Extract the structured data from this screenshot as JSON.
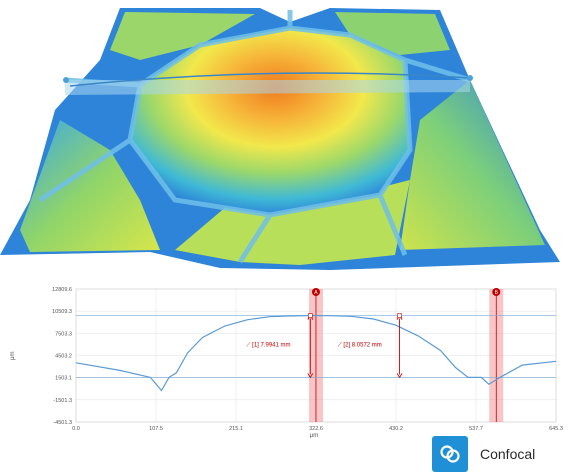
{
  "chart_data": {
    "type": "line",
    "series": [
      {
        "x": [
          0,
          60,
          100,
          115,
          125,
          135,
          150,
          170,
          200,
          230,
          260,
          285,
          310,
          322.6,
          340,
          370,
          400,
          430,
          460,
          490,
          510,
          527,
          537,
          545,
          555,
          570,
          600,
          645.3
        ],
        "y": [
          3200,
          2200,
          1300,
          -400,
          1300,
          1900,
          4500,
          6500,
          8000,
          8800,
          9200,
          9300,
          9350,
          9350,
          9330,
          9250,
          8900,
          8100,
          6700,
          4800,
          2600,
          1300,
          1300,
          1300,
          400,
          1300,
          2900,
          3400
        ]
      }
    ],
    "xlabel": "μm",
    "ylabel": "μm",
    "xticks": [
      "0.0",
      "107.5",
      "215.1",
      "322.6",
      "430.2",
      "537.7",
      "645.3"
    ],
    "yticks": [
      "12809.6",
      "10509.3",
      "7503.3",
      "4503.2",
      "1503.1",
      "-1501.3",
      "-4501.3"
    ],
    "xlim": [
      0,
      645.3
    ],
    "ylim": [
      -4501.3,
      12809.6
    ],
    "grid": true,
    "cursor_markers": [
      {
        "label": "A",
        "x": 322.6
      },
      {
        "label": "B",
        "x": 565
      }
    ],
    "measurements": [
      {
        "id": "[1]",
        "value": "7.9941 mm",
        "x": 315,
        "y_low": 1300,
        "y_high": 9350
      },
      {
        "id": "[2]",
        "value": "8.0572 mm",
        "x": 435,
        "y_low": 1300,
        "y_high": 9350
      }
    ],
    "reference_levels": [
      9350,
      1300
    ]
  },
  "colors": {
    "profile_line": "#5b9bd5",
    "marker_band": "#f08080",
    "measure": "#c00000",
    "grid": "#e2e2e2",
    "brand_blue": "#1f8fd6"
  },
  "surface": {
    "colormap": [
      "#1b4fc2",
      "#3aa7e8",
      "#7fd27a",
      "#f2e84b",
      "#f08a1e"
    ]
  },
  "brand": {
    "label": "Confocal",
    "icon": "confocal-logo-icon"
  }
}
